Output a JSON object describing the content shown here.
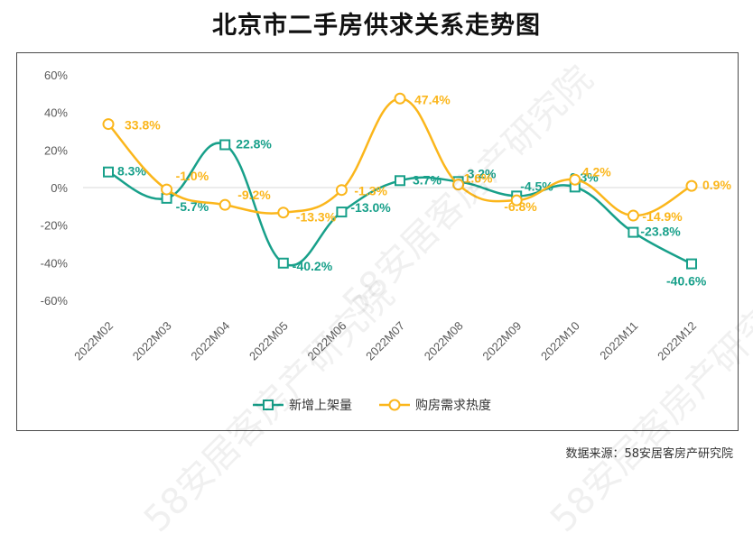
{
  "title": "北京市二手房供求关系走势图",
  "source": "数据来源：58安居客房产研究院",
  "watermark": "58安居客房产研究院",
  "colors": {
    "supply": "#18A08A",
    "demand": "#FBB61B",
    "axis_text": "#595959",
    "grid": "#D9D9D9"
  },
  "chart_data": {
    "type": "line",
    "title": "北京市二手房供求关系走势图",
    "categories": [
      "2022M02",
      "2022M03",
      "2022M04",
      "2022M05",
      "2022M06",
      "2022M07",
      "2022M08",
      "2022M09",
      "2022M10",
      "2022M11",
      "2022M12"
    ],
    "ylim": [
      -60,
      60
    ],
    "yticks": [
      "60%",
      "40%",
      "20%",
      "0%",
      "-20%",
      "-40%",
      "-60%"
    ],
    "grid": false,
    "legend": "bottom",
    "series": [
      {
        "name": "新增上架量",
        "color": "#18A08A",
        "marker": "square",
        "values": [
          8.3,
          -5.7,
          22.8,
          -40.2,
          -13.0,
          3.7,
          3.2,
          -4.5,
          0.3,
          -23.8,
          -40.6
        ],
        "labels": [
          "8.3%",
          "-5.7%",
          "22.8%",
          "-40.2%",
          "-13.0%",
          "3.7%",
          "3.2%",
          "-4.5%",
          "0.3%",
          "-23.8%",
          "-40.6%"
        ]
      },
      {
        "name": "购房需求热度",
        "color": "#FBB61B",
        "marker": "circle",
        "values": [
          33.8,
          -1.0,
          -9.2,
          -13.3,
          -1.3,
          47.4,
          1.6,
          -6.8,
          4.2,
          -14.9,
          0.9
        ],
        "labels": [
          "33.8%",
          "-1.0%",
          "-9.2%",
          "-13.3%",
          "-1.3%",
          "47.4%",
          "1.6%",
          "-6.8%",
          "4.2%",
          "-14.9%",
          "0.9%"
        ]
      }
    ]
  }
}
